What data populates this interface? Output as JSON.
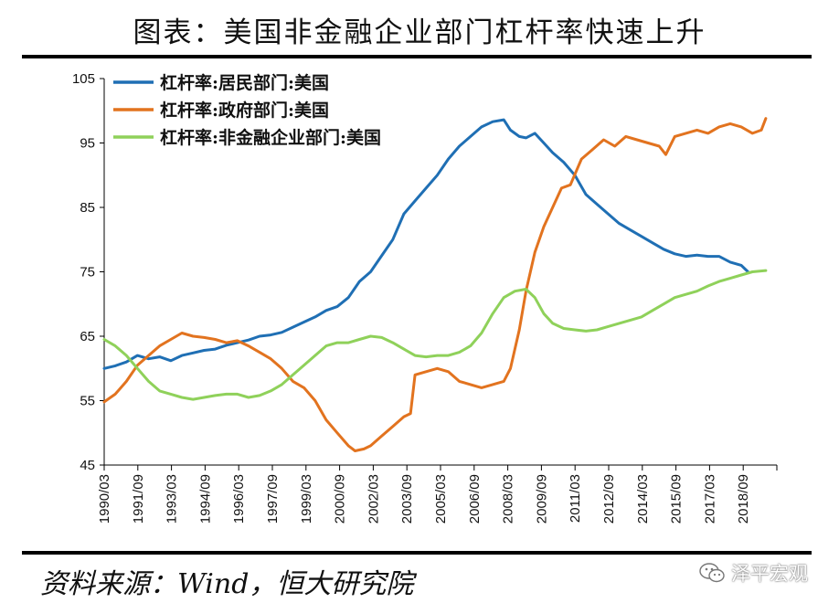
{
  "header": {
    "title": "图表：美国非金融企业部门杠杆率快速上升"
  },
  "footer": {
    "source": "资料来源：Wind，恒大研究院",
    "watermark": "泽平宏观"
  },
  "chart_data": {
    "type": "line",
    "ylim": [
      45,
      105
    ],
    "yticks": [
      45,
      55,
      65,
      75,
      85,
      95,
      105
    ],
    "xlim": [
      1990.0,
      2020.3
    ],
    "xtick_labels": [
      "1990/03",
      "1991/09",
      "1993/03",
      "1994/09",
      "1996/03",
      "1997/09",
      "1999/03",
      "2000/09",
      "2002/03",
      "2003/09",
      "2005/03",
      "2006/09",
      "2008/03",
      "2009/09",
      "2011/03",
      "2012/09",
      "2014/03",
      "2015/09",
      "2017/03",
      "2018/09"
    ],
    "legend_position": "top-left",
    "grid": false,
    "series": [
      {
        "name": "杠杆率:居民部门:美国",
        "color": "#1f6fb4",
        "points": [
          [
            1990.0,
            60.0
          ],
          [
            1990.5,
            60.4
          ],
          [
            1991.0,
            61.0
          ],
          [
            1991.5,
            62.0
          ],
          [
            1992.0,
            61.5
          ],
          [
            1992.5,
            61.8
          ],
          [
            1993.0,
            61.2
          ],
          [
            1993.5,
            62.0
          ],
          [
            1994.0,
            62.4
          ],
          [
            1994.5,
            62.8
          ],
          [
            1995.0,
            63.0
          ],
          [
            1995.5,
            63.6
          ],
          [
            1996.0,
            64.0
          ],
          [
            1996.5,
            64.4
          ],
          [
            1997.0,
            65.0
          ],
          [
            1997.5,
            65.2
          ],
          [
            1998.0,
            65.6
          ],
          [
            1998.5,
            66.4
          ],
          [
            1999.0,
            67.2
          ],
          [
            1999.5,
            68.0
          ],
          [
            2000.0,
            69.0
          ],
          [
            2000.5,
            69.6
          ],
          [
            2001.0,
            71.0
          ],
          [
            2001.5,
            73.5
          ],
          [
            2002.0,
            75.0
          ],
          [
            2002.5,
            77.5
          ],
          [
            2003.0,
            80.0
          ],
          [
            2003.5,
            84.0
          ],
          [
            2004.0,
            86.0
          ],
          [
            2004.5,
            88.0
          ],
          [
            2005.0,
            90.0
          ],
          [
            2005.5,
            92.5
          ],
          [
            2006.0,
            94.5
          ],
          [
            2006.5,
            96.0
          ],
          [
            2007.0,
            97.5
          ],
          [
            2007.5,
            98.3
          ],
          [
            2008.0,
            98.6
          ],
          [
            2008.3,
            97.0
          ],
          [
            2008.7,
            96.0
          ],
          [
            2009.0,
            95.8
          ],
          [
            2009.4,
            96.5
          ],
          [
            2009.8,
            95.0
          ],
          [
            2010.2,
            93.5
          ],
          [
            2010.7,
            92.0
          ],
          [
            2011.2,
            90.0
          ],
          [
            2011.7,
            87.0
          ],
          [
            2012.2,
            85.5
          ],
          [
            2012.7,
            84.0
          ],
          [
            2013.2,
            82.5
          ],
          [
            2013.7,
            81.5
          ],
          [
            2014.2,
            80.5
          ],
          [
            2014.7,
            79.5
          ],
          [
            2015.2,
            78.5
          ],
          [
            2015.7,
            77.8
          ],
          [
            2016.2,
            77.4
          ],
          [
            2016.7,
            77.6
          ],
          [
            2017.2,
            77.4
          ],
          [
            2017.7,
            77.4
          ],
          [
            2018.2,
            76.5
          ],
          [
            2018.7,
            76.0
          ],
          [
            2019.0,
            75.0
          ]
        ]
      },
      {
        "name": "杠杆率:政府部门:美国",
        "color": "#e2731f",
        "points": [
          [
            1990.0,
            54.8
          ],
          [
            1990.5,
            56.0
          ],
          [
            1991.0,
            58.0
          ],
          [
            1991.5,
            60.5
          ],
          [
            1992.0,
            62.0
          ],
          [
            1992.5,
            63.5
          ],
          [
            1993.0,
            64.5
          ],
          [
            1993.5,
            65.5
          ],
          [
            1994.0,
            65.0
          ],
          [
            1994.5,
            64.8
          ],
          [
            1995.0,
            64.5
          ],
          [
            1995.5,
            64.0
          ],
          [
            1996.0,
            64.3
          ],
          [
            1996.5,
            63.5
          ],
          [
            1997.0,
            62.5
          ],
          [
            1997.5,
            61.5
          ],
          [
            1998.0,
            60.0
          ],
          [
            1998.5,
            58.0
          ],
          [
            1999.0,
            57.0
          ],
          [
            1999.5,
            55.0
          ],
          [
            2000.0,
            52.0
          ],
          [
            2000.5,
            50.0
          ],
          [
            2001.0,
            48.0
          ],
          [
            2001.3,
            47.2
          ],
          [
            2001.7,
            47.5
          ],
          [
            2002.0,
            48.0
          ],
          [
            2002.5,
            49.5
          ],
          [
            2003.0,
            51.0
          ],
          [
            2003.5,
            52.5
          ],
          [
            2003.8,
            53.0
          ],
          [
            2004.0,
            59.0
          ],
          [
            2004.5,
            59.5
          ],
          [
            2005.0,
            60.0
          ],
          [
            2005.5,
            59.5
          ],
          [
            2006.0,
            58.0
          ],
          [
            2006.5,
            57.5
          ],
          [
            2007.0,
            57.0
          ],
          [
            2007.5,
            57.5
          ],
          [
            2008.0,
            58.0
          ],
          [
            2008.3,
            60.0
          ],
          [
            2008.7,
            66.0
          ],
          [
            2009.0,
            72.0
          ],
          [
            2009.4,
            78.0
          ],
          [
            2009.8,
            82.0
          ],
          [
            2010.2,
            85.0
          ],
          [
            2010.6,
            88.0
          ],
          [
            2011.0,
            88.5
          ],
          [
            2011.5,
            92.5
          ],
          [
            2012.0,
            94.0
          ],
          [
            2012.5,
            95.5
          ],
          [
            2013.0,
            94.5
          ],
          [
            2013.5,
            96.0
          ],
          [
            2014.0,
            95.5
          ],
          [
            2014.5,
            95.0
          ],
          [
            2015.0,
            94.5
          ],
          [
            2015.3,
            93.2
          ],
          [
            2015.7,
            96.0
          ],
          [
            2016.2,
            96.5
          ],
          [
            2016.7,
            97.0
          ],
          [
            2017.2,
            96.5
          ],
          [
            2017.7,
            97.5
          ],
          [
            2018.2,
            98.0
          ],
          [
            2018.7,
            97.5
          ],
          [
            2019.2,
            96.5
          ],
          [
            2019.6,
            97.0
          ],
          [
            2019.8,
            98.8
          ]
        ]
      },
      {
        "name": "杠杆率:非金融企业部门:美国",
        "color": "#8fd15a",
        "points": [
          [
            1990.0,
            64.5
          ],
          [
            1990.5,
            63.5
          ],
          [
            1991.0,
            62.0
          ],
          [
            1991.5,
            60.0
          ],
          [
            1992.0,
            58.0
          ],
          [
            1992.5,
            56.5
          ],
          [
            1993.0,
            56.0
          ],
          [
            1993.5,
            55.5
          ],
          [
            1994.0,
            55.2
          ],
          [
            1994.5,
            55.5
          ],
          [
            1995.0,
            55.8
          ],
          [
            1995.5,
            56.0
          ],
          [
            1996.0,
            56.0
          ],
          [
            1996.5,
            55.5
          ],
          [
            1997.0,
            55.8
          ],
          [
            1997.5,
            56.5
          ],
          [
            1998.0,
            57.5
          ],
          [
            1998.5,
            59.0
          ],
          [
            1999.0,
            60.5
          ],
          [
            1999.5,
            62.0
          ],
          [
            2000.0,
            63.5
          ],
          [
            2000.5,
            64.0
          ],
          [
            2001.0,
            64.0
          ],
          [
            2001.5,
            64.5
          ],
          [
            2002.0,
            65.0
          ],
          [
            2002.5,
            64.8
          ],
          [
            2003.0,
            64.0
          ],
          [
            2003.5,
            63.0
          ],
          [
            2004.0,
            62.0
          ],
          [
            2004.5,
            61.8
          ],
          [
            2005.0,
            62.0
          ],
          [
            2005.5,
            62.0
          ],
          [
            2006.0,
            62.5
          ],
          [
            2006.5,
            63.5
          ],
          [
            2007.0,
            65.5
          ],
          [
            2007.5,
            68.5
          ],
          [
            2008.0,
            71.0
          ],
          [
            2008.5,
            72.0
          ],
          [
            2009.0,
            72.3
          ],
          [
            2009.4,
            71.0
          ],
          [
            2009.8,
            68.5
          ],
          [
            2010.2,
            67.0
          ],
          [
            2010.7,
            66.2
          ],
          [
            2011.2,
            66.0
          ],
          [
            2011.7,
            65.8
          ],
          [
            2012.2,
            66.0
          ],
          [
            2012.7,
            66.5
          ],
          [
            2013.2,
            67.0
          ],
          [
            2013.7,
            67.5
          ],
          [
            2014.2,
            68.0
          ],
          [
            2014.7,
            69.0
          ],
          [
            2015.2,
            70.0
          ],
          [
            2015.7,
            71.0
          ],
          [
            2016.2,
            71.5
          ],
          [
            2016.7,
            72.0
          ],
          [
            2017.2,
            72.8
          ],
          [
            2017.7,
            73.5
          ],
          [
            2018.2,
            74.0
          ],
          [
            2018.7,
            74.5
          ],
          [
            2019.2,
            75.0
          ],
          [
            2019.8,
            75.2
          ]
        ]
      }
    ]
  }
}
